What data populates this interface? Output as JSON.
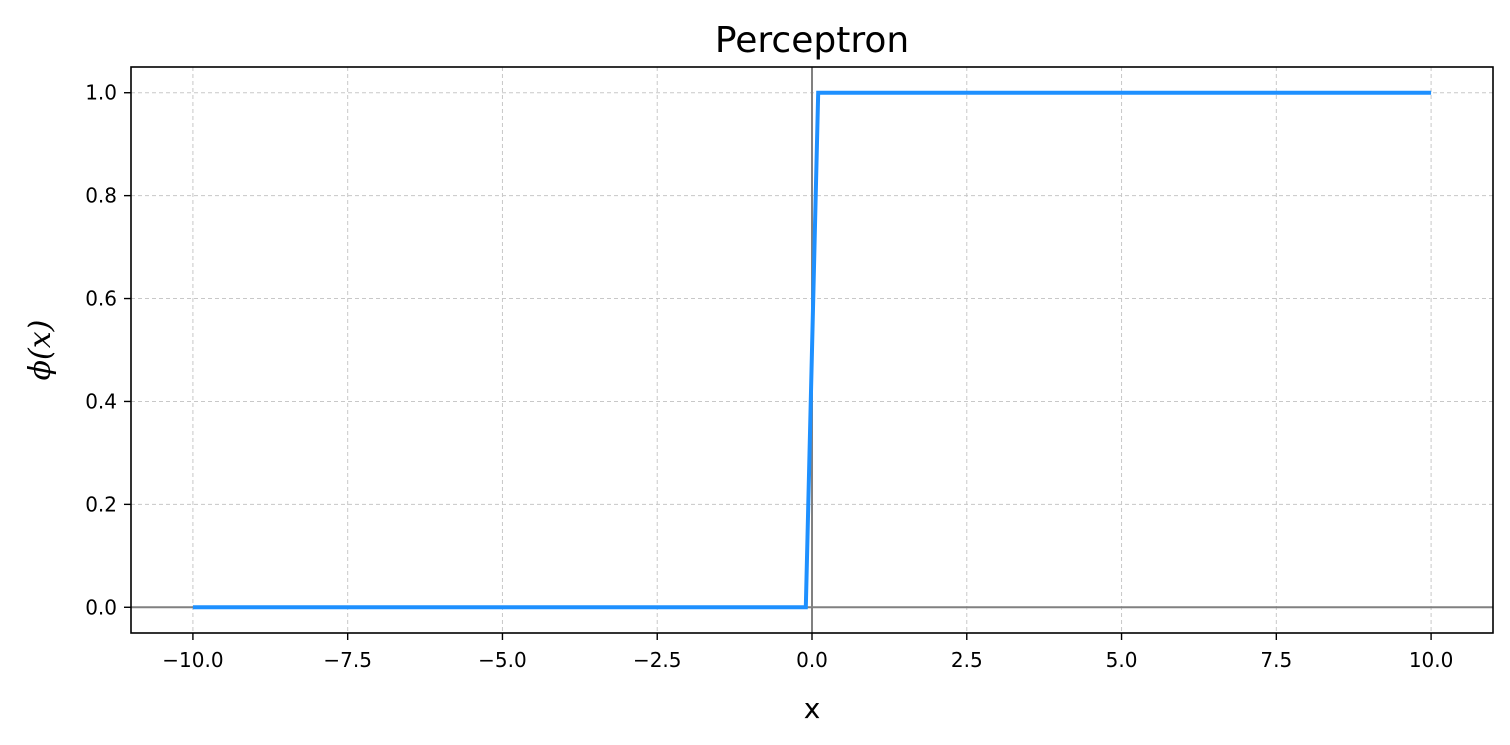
{
  "chart_data": {
    "type": "line",
    "title": "Perceptron",
    "xlabel": "x",
    "ylabel": "ϕ(x)",
    "xlim": [
      -11,
      11
    ],
    "ylim": [
      -0.05,
      1.05
    ],
    "xticks": [
      -10.0,
      -7.5,
      -5.0,
      -2.5,
      0.0,
      2.5,
      5.0,
      7.5,
      10.0
    ],
    "xtick_labels": [
      "−10.0",
      "−7.5",
      "−5.0",
      "−2.5",
      "0.0",
      "2.5",
      "5.0",
      "7.5",
      "10.0"
    ],
    "yticks": [
      0.0,
      0.2,
      0.4,
      0.6,
      0.8,
      1.0
    ],
    "ytick_labels": [
      "0.0",
      "0.2",
      "0.4",
      "0.6",
      "0.8",
      "1.0"
    ],
    "grid": true,
    "reference_lines": {
      "x": 0,
      "y": 0,
      "color": "#808080"
    },
    "series": [
      {
        "color": "#1e90ff",
        "x": [
          -10.0,
          -0.1,
          0.1,
          10.0
        ],
        "y": [
          0.0,
          0.0,
          1.0,
          1.0
        ]
      }
    ]
  }
}
